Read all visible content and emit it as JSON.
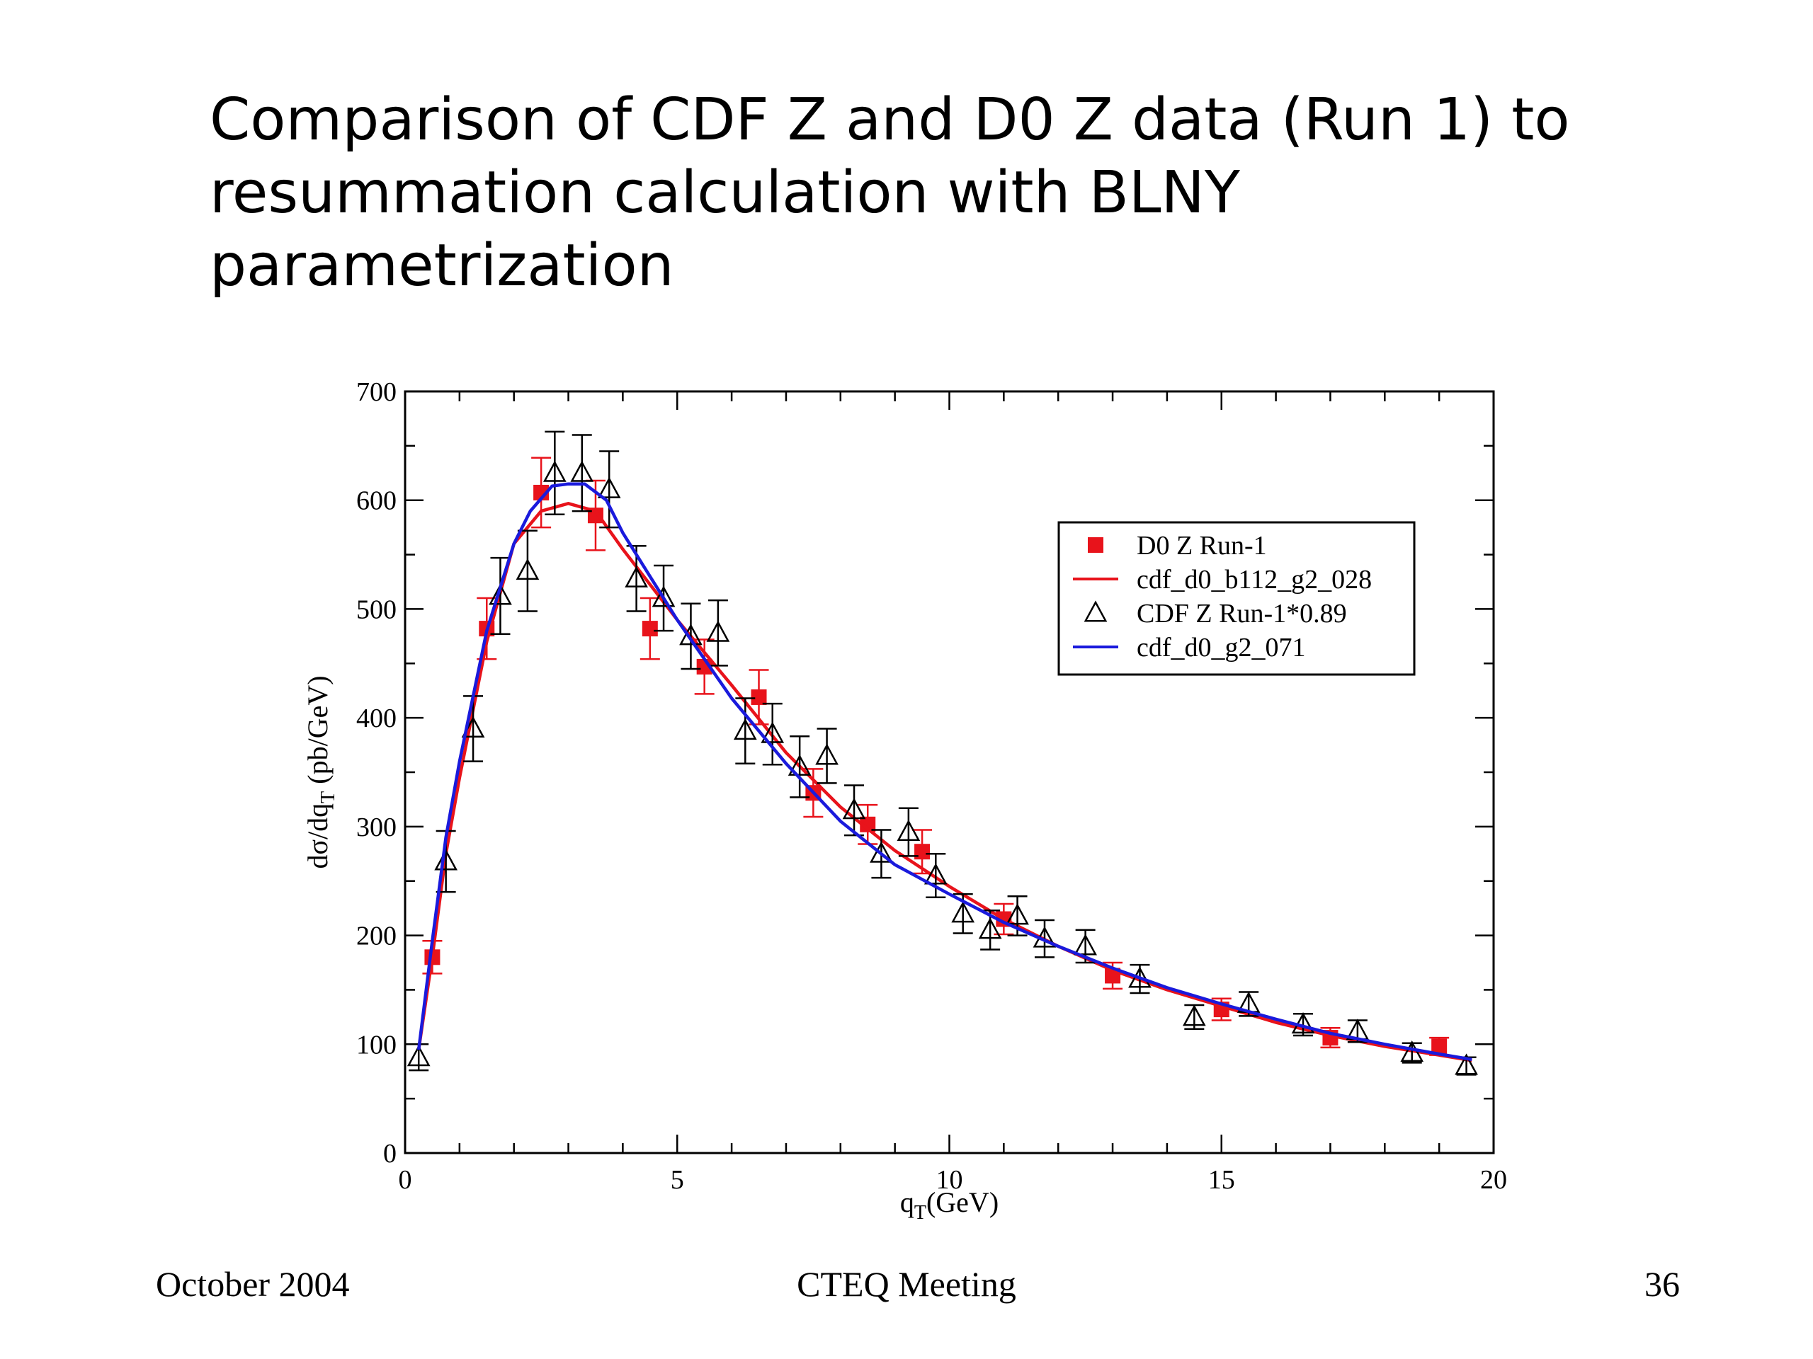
{
  "slide": {
    "title_lines": [
      "Comparison of CDF Z and D0 Z data (Run 1) to",
      "resummation calculation with BLNY",
      "parametrization"
    ],
    "footer_left": "October 2004",
    "footer_center": "CTEQ Meeting",
    "footer_right": "36"
  },
  "chart_data": {
    "type": "scatter",
    "title": "",
    "xlabel": "q_T(GeV)",
    "ylabel": "dσ/dq_T (pb/GeV)",
    "xlim": [
      0,
      20
    ],
    "ylim": [
      0,
      700
    ],
    "xticks": [
      0,
      5,
      10,
      15,
      20
    ],
    "yticks": [
      0,
      100,
      200,
      300,
      400,
      500,
      600,
      700
    ],
    "grid": false,
    "legend_position": "top-right",
    "colors": {
      "d0": "#e8131b",
      "red_curve": "#e8131b",
      "cdf": "#000000",
      "blue_curve": "#1a1adc"
    },
    "series": [
      {
        "name": "D0 Z Run-1",
        "kind": "points",
        "marker": "filled-square",
        "x": [
          0.5,
          1.5,
          2.5,
          3.5,
          4.5,
          5.5,
          6.5,
          7.5,
          8.5,
          9.5,
          11.0,
          13.0,
          15.0,
          17.0,
          19.0
        ],
        "y": [
          180,
          482,
          607,
          586,
          482,
          447,
          419,
          331,
          302,
          277,
          215,
          163,
          132,
          106,
          98
        ],
        "err": [
          15,
          28,
          32,
          32,
          28,
          25,
          25,
          22,
          18,
          20,
          14,
          12,
          10,
          9,
          8
        ]
      },
      {
        "name": "cdf_d0_b112_g2_028",
        "kind": "line",
        "x": [
          0.25,
          0.5,
          0.75,
          1.0,
          1.5,
          2.0,
          2.5,
          3.0,
          3.5,
          4.0,
          5.0,
          6.0,
          7.0,
          8.0,
          9.0,
          10.0,
          11.0,
          12.0,
          13.0,
          14.0,
          15.0,
          16.0,
          17.0,
          18.0,
          19.0,
          19.6
        ],
        "y": [
          95,
          180,
          275,
          345,
          470,
          560,
          590,
          597,
          590,
          555,
          490,
          430,
          368,
          318,
          278,
          245,
          215,
          190,
          168,
          150,
          135,
          120,
          108,
          98,
          90,
          85
        ]
      },
      {
        "name": "CDF Z Run-1*0.89",
        "kind": "points",
        "marker": "open-triangle",
        "x": [
          0.25,
          0.75,
          1.25,
          1.75,
          2.25,
          2.75,
          3.25,
          3.75,
          4.25,
          4.75,
          5.25,
          5.75,
          6.25,
          6.75,
          7.25,
          7.75,
          8.25,
          8.75,
          9.25,
          9.75,
          10.25,
          10.75,
          11.25,
          11.75,
          12.5,
          13.5,
          14.5,
          15.5,
          16.5,
          17.5,
          18.5,
          19.5
        ],
        "y": [
          88,
          268,
          390,
          512,
          535,
          625,
          625,
          610,
          528,
          510,
          475,
          478,
          388,
          385,
          355,
          365,
          315,
          275,
          295,
          255,
          220,
          205,
          218,
          197,
          190,
          160,
          125,
          137,
          118,
          112,
          92,
          80
        ],
        "err": [
          12,
          28,
          30,
          35,
          37,
          38,
          35,
          35,
          30,
          30,
          30,
          30,
          30,
          28,
          28,
          25,
          23,
          22,
          22,
          20,
          18,
          18,
          18,
          17,
          15,
          13,
          11,
          11,
          10,
          10,
          9,
          8
        ]
      },
      {
        "name": "cdf_d0_g2_071",
        "kind": "line",
        "x": [
          0.25,
          0.5,
          0.75,
          1.0,
          1.5,
          2.0,
          2.3,
          2.7,
          3.0,
          3.3,
          3.7,
          4.0,
          4.5,
          5.0,
          6.0,
          7.0,
          8.0,
          9.0,
          10.0,
          11.0,
          12.0,
          13.0,
          14.0,
          15.0,
          16.0,
          17.0,
          18.0,
          19.0,
          19.6
        ],
        "y": [
          95,
          195,
          290,
          360,
          480,
          560,
          590,
          613,
          615,
          615,
          600,
          570,
          530,
          490,
          418,
          358,
          305,
          265,
          238,
          212,
          190,
          170,
          152,
          137,
          123,
          110,
          100,
          91,
          86
        ]
      }
    ]
  }
}
